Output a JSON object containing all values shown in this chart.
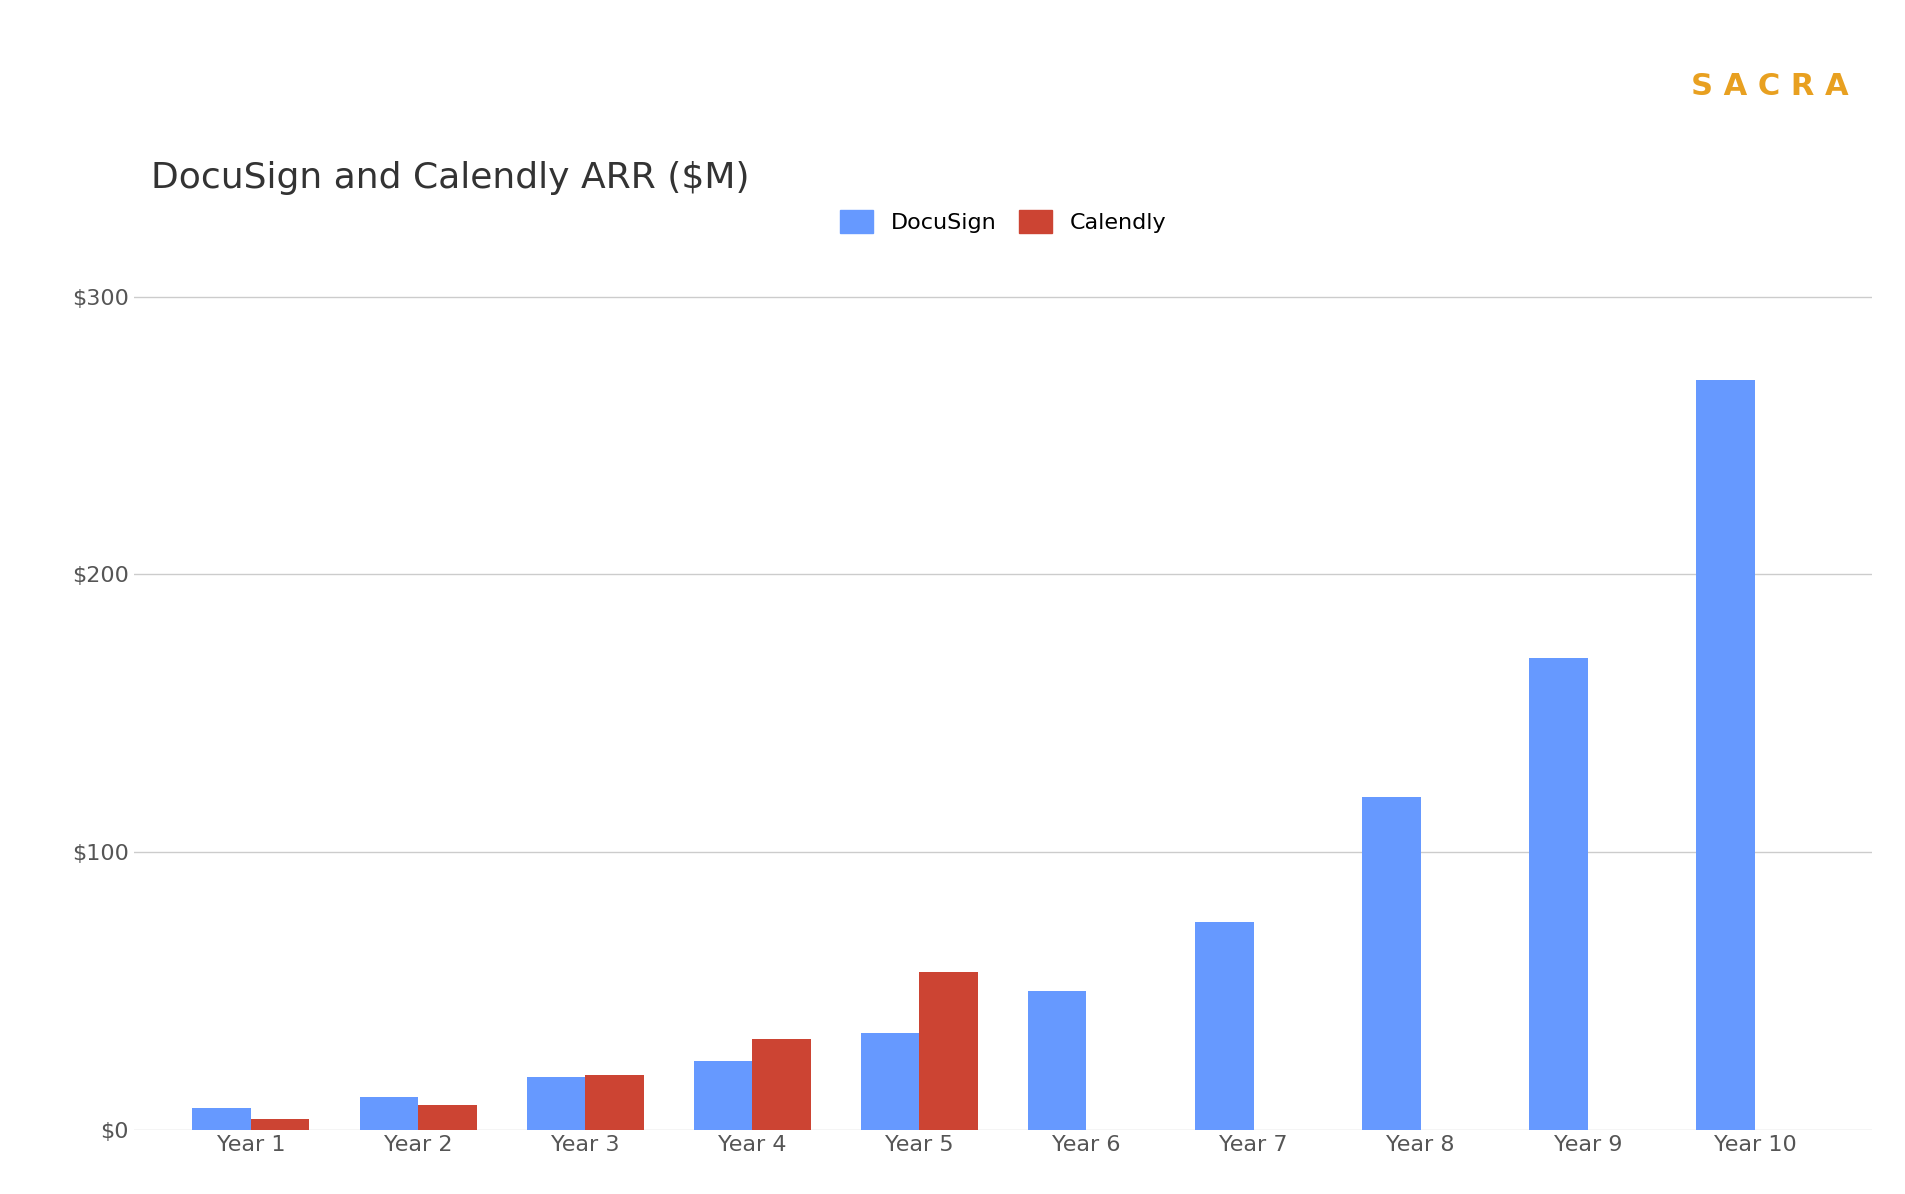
{
  "title": "DocuSign and Calendly ARR ($M)",
  "sacra_label": "S A C R A",
  "categories": [
    "Year 1",
    "Year 2",
    "Year 3",
    "Year 4",
    "Year 5",
    "Year 6",
    "Year 7",
    "Year 8",
    "Year 9",
    "Year 10"
  ],
  "docusign_values": [
    8,
    12,
    19,
    25,
    35,
    50,
    75,
    120,
    170,
    270
  ],
  "calendly_values": [
    4,
    9,
    20,
    33,
    57,
    0,
    0,
    0,
    0,
    0
  ],
  "docusign_color": "#6699FF",
  "calendly_color": "#CC4433",
  "background_color": "#FFFFFF",
  "title_fontsize": 26,
  "tick_fontsize": 16,
  "legend_fontsize": 16,
  "ylim": [
    0,
    320
  ],
  "yticks": [
    0,
    100,
    200,
    300
  ],
  "ytick_labels": [
    "$0",
    "$100",
    "$200",
    "$300"
  ],
  "grid_color": "#CCCCCC",
  "sacra_color": "#E8A020",
  "bar_width": 0.35
}
